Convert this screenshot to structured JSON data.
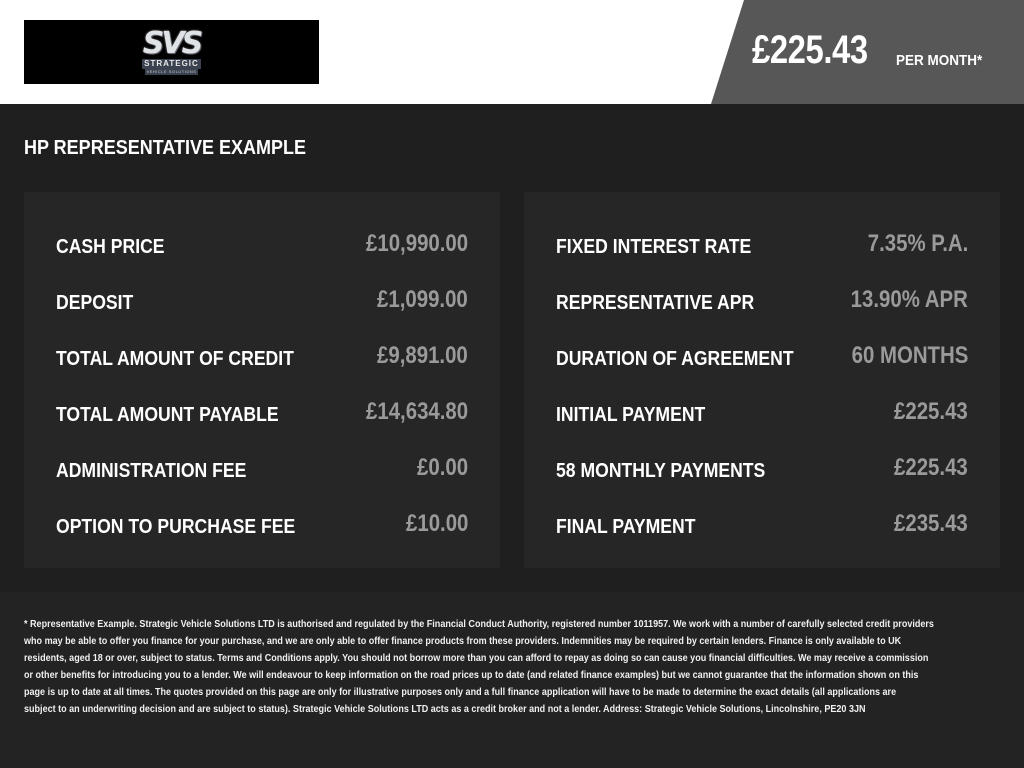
{
  "header": {
    "logo": {
      "mark": "SVS",
      "word": "STRATEGIC",
      "sub": "VEHICLE SOLUTIONS"
    },
    "price": "£225.43",
    "price_suffix": "PER MONTH*",
    "colors": {
      "price_panel": "#575757",
      "background": "#1f1f20"
    }
  },
  "section_title": "HP REPRESENTATIVE EXAMPLE",
  "left_panel": [
    {
      "label": "CASH PRICE",
      "value": "£10,990.00"
    },
    {
      "label": "DEPOSIT",
      "value": "£1,099.00"
    },
    {
      "label": "TOTAL AMOUNT OF CREDIT",
      "value": "£9,891.00"
    },
    {
      "label": "TOTAL AMOUNT PAYABLE",
      "value": "£14,634.80"
    },
    {
      "label": "ADMINISTRATION FEE",
      "value": "£0.00"
    },
    {
      "label": "OPTION TO PURCHASE FEE",
      "value": "£10.00"
    }
  ],
  "right_panel": [
    {
      "label": "FIXED INTEREST RATE",
      "value": "7.35% P.A."
    },
    {
      "label": "REPRESENTATIVE APR",
      "value": "13.90% APR"
    },
    {
      "label": "DURATION OF AGREEMENT",
      "value": "60 MONTHS"
    },
    {
      "label": "INITIAL PAYMENT",
      "value": "£225.43"
    },
    {
      "label": "58 MONTHLY PAYMENTS",
      "value": "£225.43"
    },
    {
      "label": "FINAL PAYMENT",
      "value": "£235.43"
    }
  ],
  "disclaimer_lines": [
    "* Representative Example. Strategic Vehicle Solutions LTD is authorised and regulated by the Financial Conduct Authority, registered number 1011957. We work with a number of carefully selected credit providers",
    "who may be able to offer you finance for your purchase, and we are only able to offer finance products from these providers. Indemnities may be required by certain lenders. Finance is only available to UK",
    "residents, aged 18 or over, subject to status. Terms and Conditions apply. You should not borrow more than you can afford to repay as doing so can cause you financial difficulties. We may receive a commission",
    "or other benefits for introducing you to a lender. We will endeavour to keep information on the road prices up to date (and related finance examples) but we cannot guarantee that the information shown on this",
    "page is up to date at all times. The quotes provided on this page are only for illustrative purposes only and a full finance application will have to be made to determine the exact details (all applications are",
    "subject to an underwriting decision and are subject to status). Strategic Vehicle Solutions LTD acts as a credit broker and not a lender. Address: Strategic Vehicle Solutions, Lincolnshire, PE20 3JN"
  ]
}
